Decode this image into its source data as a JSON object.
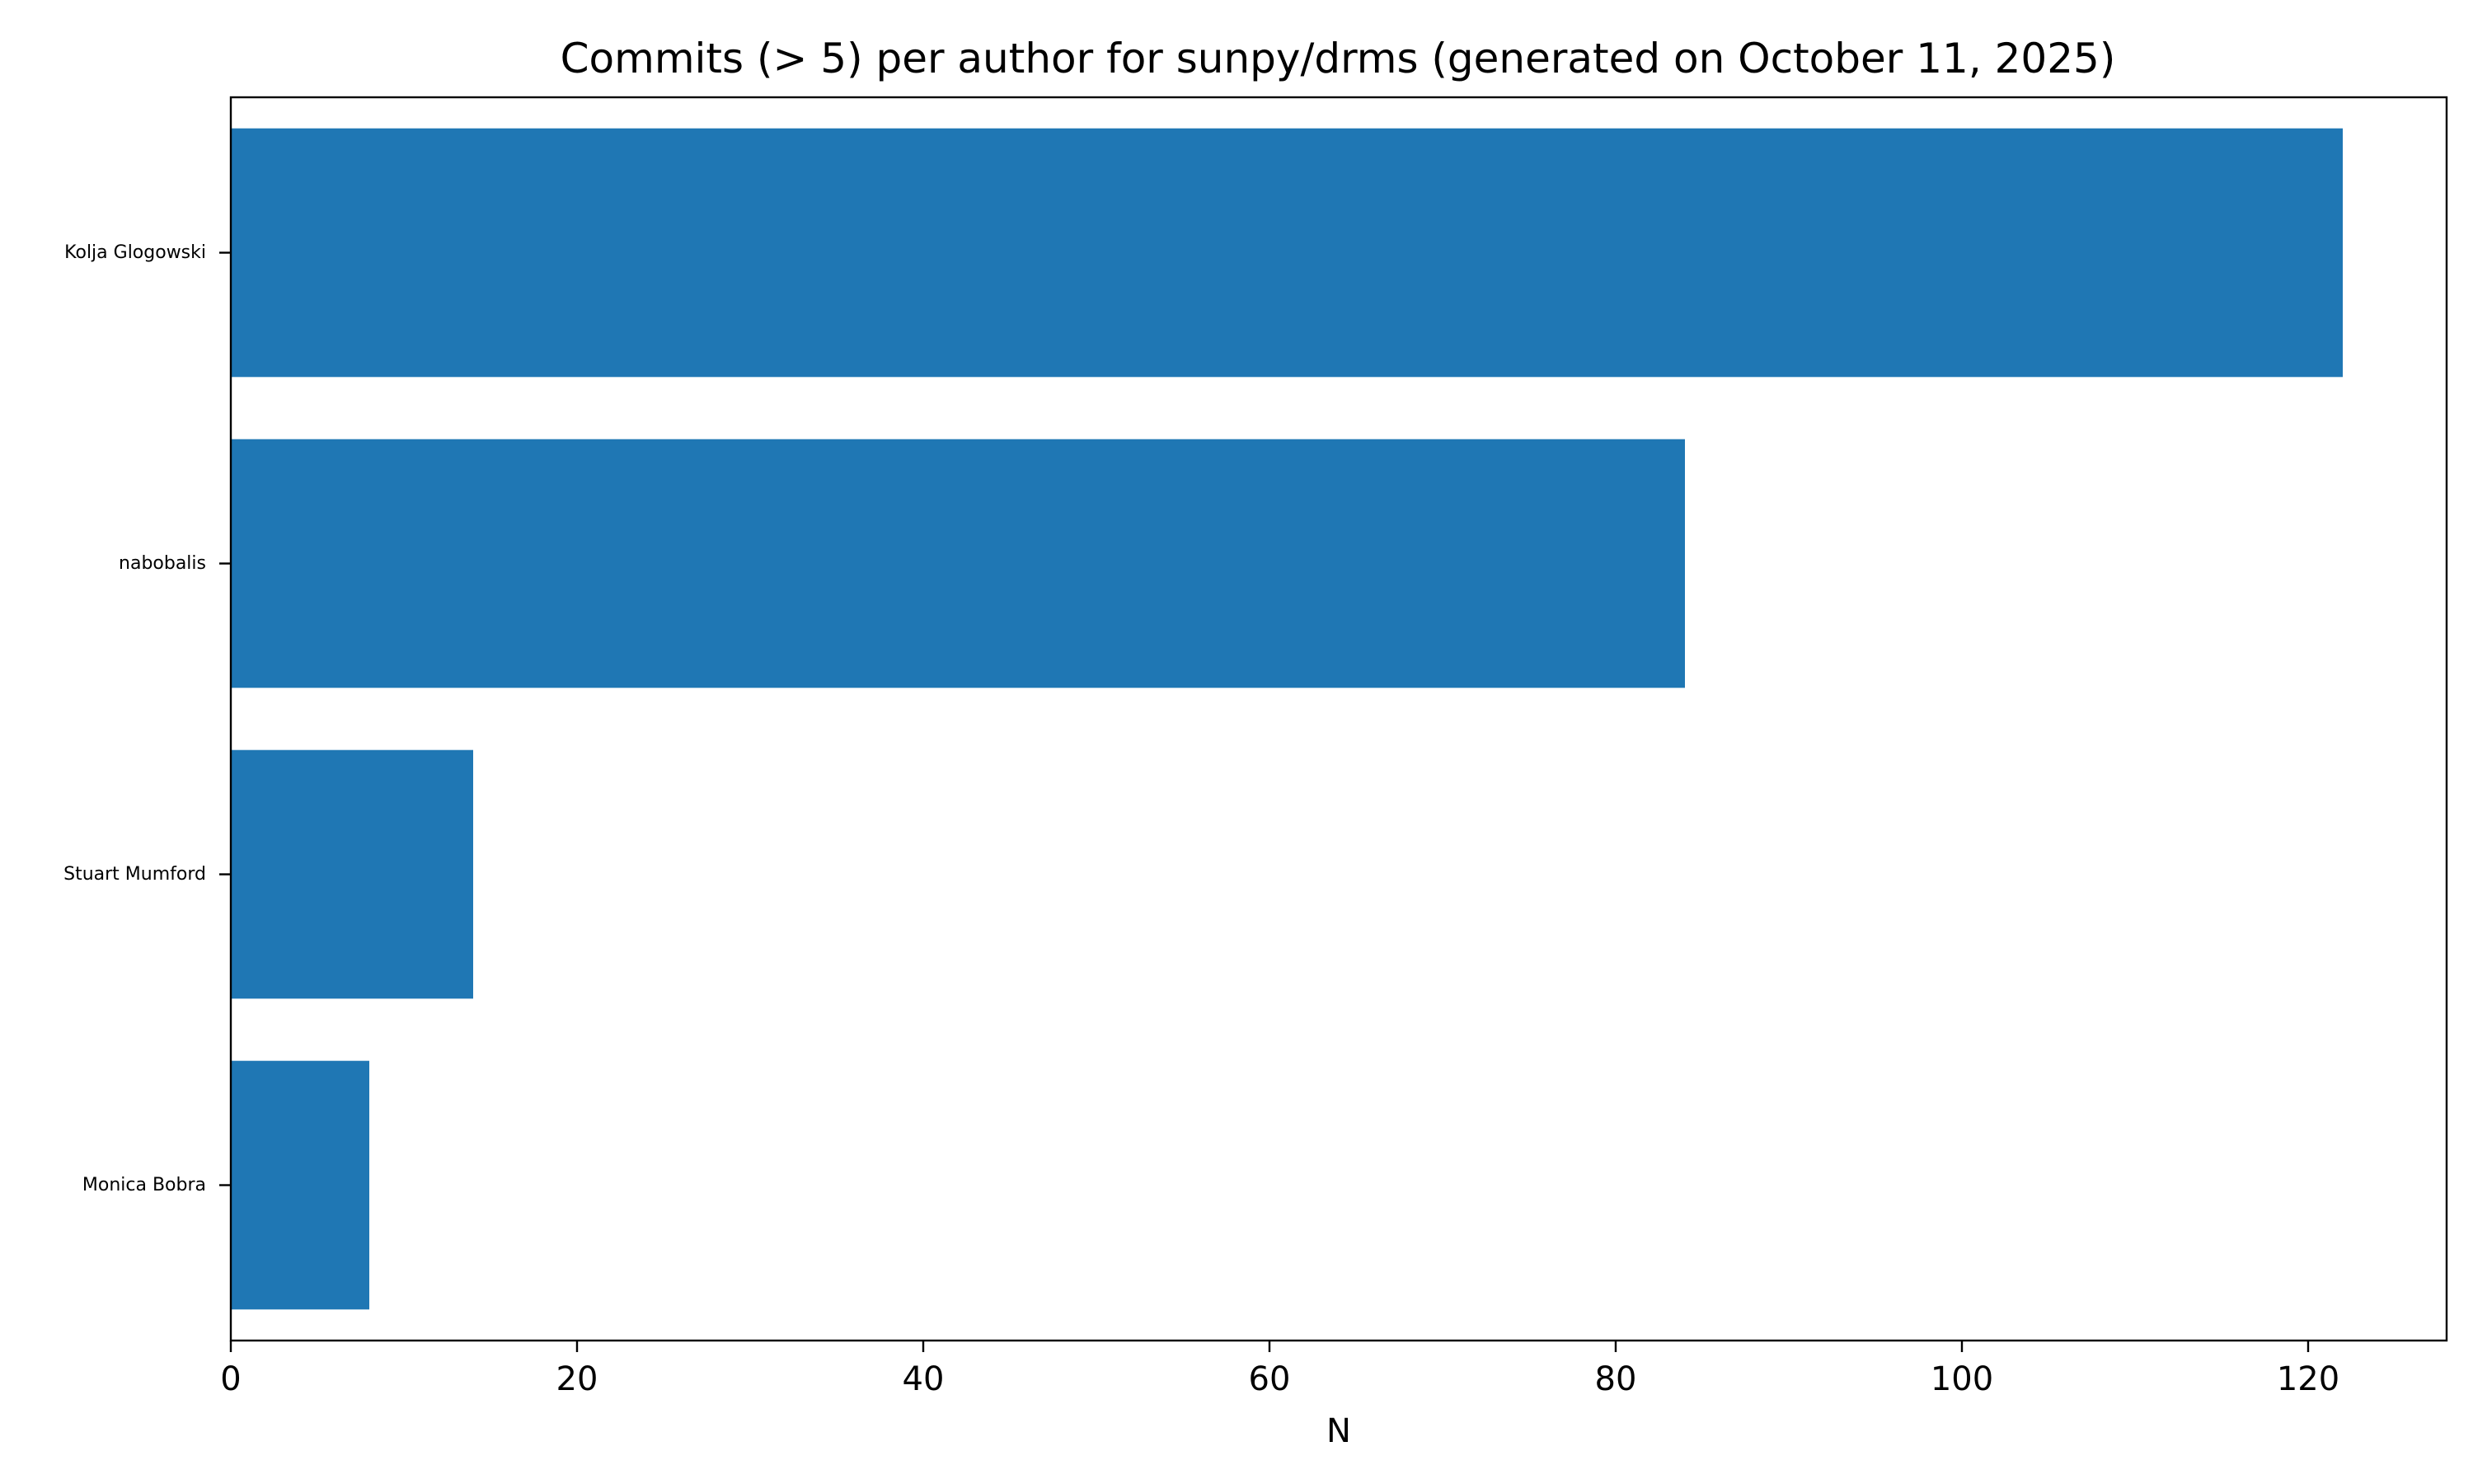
{
  "chart_data": {
    "type": "bar",
    "orientation": "horizontal",
    "title": "Commits (> 5) per author for sunpy/drms (generated on October 11, 2025)",
    "xlabel": "N",
    "ylabel": "",
    "categories": [
      "Kolja Glogowski",
      "nabobalis",
      "Stuart Mumford",
      "Monica Bobra"
    ],
    "values": [
      122,
      84,
      14,
      8
    ],
    "xlim": [
      0,
      128
    ],
    "xticks": [
      0,
      20,
      40,
      60,
      80,
      100,
      120
    ],
    "bar_color": "#1f77b4",
    "grid": false,
    "legend": "none"
  }
}
